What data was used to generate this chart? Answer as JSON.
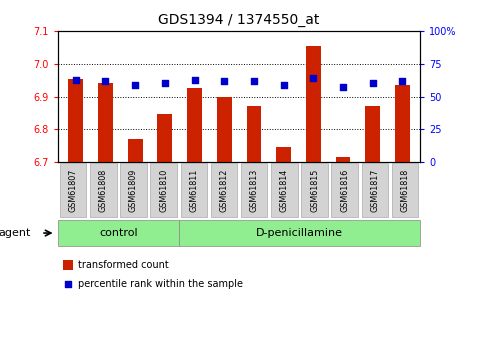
{
  "title": "GDS1394 / 1374550_at",
  "samples": [
    "GSM61807",
    "GSM61808",
    "GSM61809",
    "GSM61810",
    "GSM61811",
    "GSM61812",
    "GSM61813",
    "GSM61814",
    "GSM61815",
    "GSM61816",
    "GSM61817",
    "GSM61818"
  ],
  "bar_values": [
    6.955,
    6.94,
    6.77,
    6.847,
    6.927,
    6.9,
    6.87,
    6.745,
    7.055,
    6.715,
    6.87,
    6.935
  ],
  "percentile_values": [
    63,
    62,
    59,
    60,
    63,
    62,
    62,
    59,
    64,
    57,
    60,
    62
  ],
  "bar_color": "#cc2200",
  "dot_color": "#0000cc",
  "ylim_left": [
    6.7,
    7.1
  ],
  "ylim_right": [
    0,
    100
  ],
  "yticks_left": [
    6.7,
    6.8,
    6.9,
    7.0,
    7.1
  ],
  "yticks_right": [
    0,
    25,
    50,
    75,
    100
  ],
  "ytick_labels_right": [
    "0",
    "25",
    "50",
    "75",
    "100%"
  ],
  "grid_values": [
    6.8,
    6.9,
    7.0
  ],
  "control_samples": 4,
  "control_label": "control",
  "treatment_label": "D-penicillamine",
  "agent_label": "agent",
  "legend_bar_label": "transformed count",
  "legend_dot_label": "percentile rank within the sample",
  "control_bg": "#90ee90",
  "treatment_bg": "#90ee90",
  "tick_label_bg": "#d3d3d3",
  "title_fontsize": 10,
  "tick_fontsize": 7,
  "bar_width": 0.5
}
